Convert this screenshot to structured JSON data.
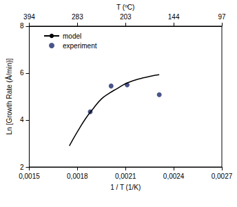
{
  "chart_data": {
    "type": "line",
    "x_label": "1 / T (1/K)",
    "x2_label": "T (ºC)",
    "y_label": "Ln [Growth Rate (Å/min)]",
    "xlim": [
      0.0015,
      0.0027
    ],
    "xticks": [
      {
        "value": 0.0015,
        "label": "0,0015"
      },
      {
        "value": 0.0018,
        "label": "0,0018"
      },
      {
        "value": 0.0021,
        "label": "0,0021"
      },
      {
        "value": 0.0024,
        "label": "0,0024"
      },
      {
        "value": 0.0027,
        "label": "0,0027"
      }
    ],
    "x2lim": [
      0.0015,
      0.0027
    ],
    "x2ticks": [
      {
        "value": 0.0015,
        "label": "394"
      },
      {
        "value": 0.0018,
        "label": "283"
      },
      {
        "value": 0.0021,
        "label": "203"
      },
      {
        "value": 0.0024,
        "label": "144"
      },
      {
        "value": 0.0027,
        "label": "97"
      }
    ],
    "ylim": [
      2,
      8
    ],
    "yticks": [
      2,
      4,
      6,
      8
    ],
    "grid": false,
    "legend": "top-left",
    "series": [
      {
        "name": "model",
        "type": "line",
        "color": "#000000",
        "line_style": "solid",
        "x": [
          0.00175,
          0.0018,
          0.00185,
          0.0019,
          0.00195,
          0.002,
          0.00205,
          0.0021,
          0.00215,
          0.0022,
          0.00225,
          0.00231
        ],
        "values": [
          2.9,
          3.5,
          4.05,
          4.5,
          4.9,
          5.15,
          5.35,
          5.55,
          5.68,
          5.78,
          5.86,
          5.93
        ]
      },
      {
        "name": "experiment",
        "type": "scatter",
        "color": "#1b2a6b",
        "marker": "circle",
        "x": [
          0.00188,
          0.00201,
          0.00211,
          0.00231
        ],
        "values": [
          4.35,
          5.45,
          5.5,
          5.08
        ]
      }
    ]
  }
}
